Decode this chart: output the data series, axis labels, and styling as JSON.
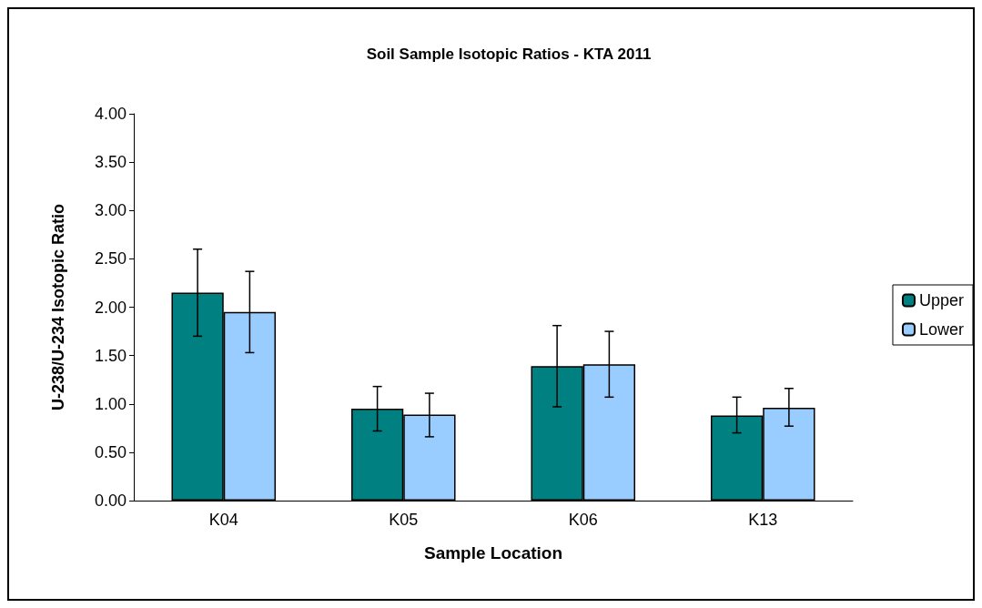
{
  "chart_data": {
    "type": "bar",
    "title": "Soil Sample Isotopic Ratios - KTA 2011",
    "xlabel": "Sample Location",
    "ylabel": "U-238/U-234 Isotopic Ratio",
    "categories": [
      "K04",
      "K05",
      "K06",
      "K13"
    ],
    "series": [
      {
        "name": "Upper",
        "color": "#008080",
        "values": [
          2.15,
          0.95,
          1.39,
          0.88
        ],
        "errors": [
          [
            1.7,
            2.6
          ],
          [
            0.72,
            1.18
          ],
          [
            0.97,
            1.81
          ],
          [
            0.7,
            1.07
          ]
        ]
      },
      {
        "name": "Lower",
        "color": "#99ccff",
        "values": [
          1.95,
          0.89,
          1.41,
          0.96
        ],
        "errors": [
          [
            1.53,
            2.37
          ],
          [
            0.66,
            1.11
          ],
          [
            1.07,
            1.75
          ],
          [
            0.77,
            1.16
          ]
        ]
      }
    ],
    "ylim": [
      0,
      4
    ],
    "yticks": [
      {
        "value": 0,
        "label": "0.00"
      },
      {
        "value": 0.5,
        "label": "0.50"
      },
      {
        "value": 1,
        "label": "1.00"
      },
      {
        "value": 1.5,
        "label": "1.50"
      },
      {
        "value": 2,
        "label": "2.00"
      },
      {
        "value": 2.5,
        "label": "2.50"
      },
      {
        "value": 3,
        "label": "3.00"
      },
      {
        "value": 3.5,
        "label": "3.50"
      },
      {
        "value": 4,
        "label": "4.00"
      }
    ],
    "grid": false,
    "legend": "right"
  }
}
